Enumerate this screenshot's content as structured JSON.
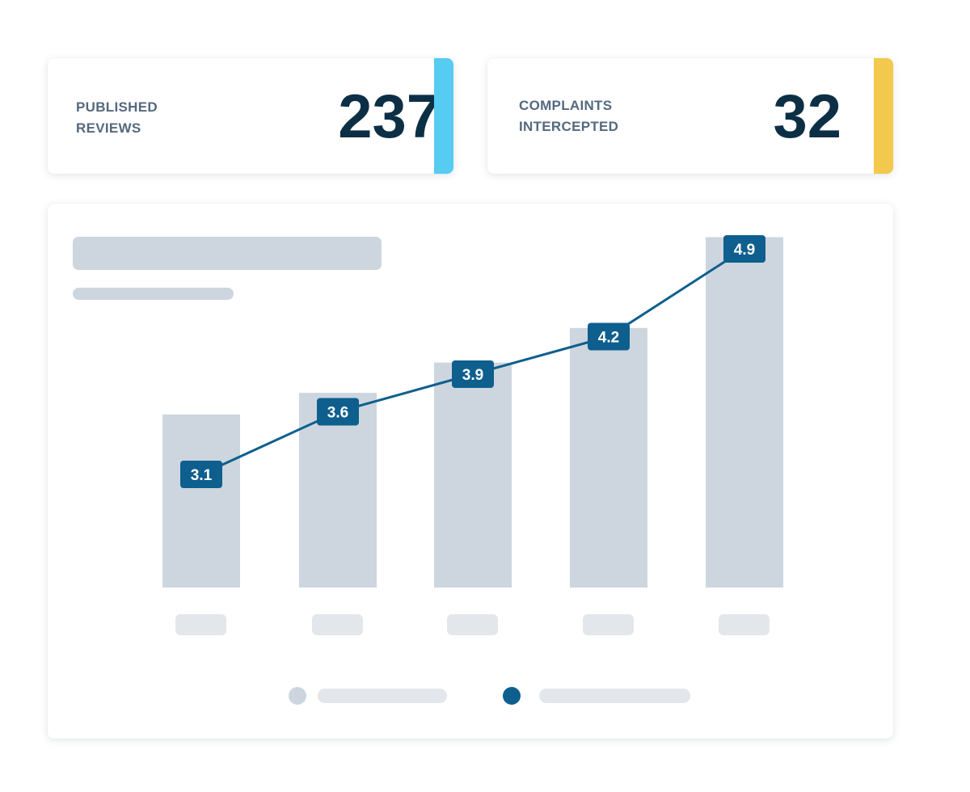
{
  "stats": [
    {
      "label": "PUBLISHED REVIEWS",
      "value": "237",
      "accent": "#56ccf2"
    },
    {
      "label": "COMPLAINTS INTERCEPTED",
      "value": "32",
      "accent": "#f2c94c"
    }
  ],
  "colors": {
    "bar": "#cdd6de",
    "line": "#0e5f8e",
    "label_bg": "#0e5f8e",
    "label_text": "#ffffff",
    "placeholder": "#cdd6de",
    "tick_placeholder": "#e3e7eb",
    "dark_text": "#0d2f46",
    "muted_text": "#54697e"
  },
  "chart_data": {
    "type": "bar",
    "title": "",
    "xlabel": "",
    "ylabel": "",
    "categories": [
      "",
      "",
      "",
      "",
      ""
    ],
    "series": [
      {
        "type": "bar",
        "values": [
          4.0,
          4.5,
          5.2,
          6.0,
          8.1
        ]
      },
      {
        "type": "line",
        "values": [
          3.1,
          3.6,
          3.9,
          4.2,
          4.9
        ]
      }
    ],
    "data_labels": [
      "3.1",
      "3.6",
      "3.9",
      "4.2",
      "4.9"
    ],
    "ylim": [
      0,
      8.5
    ],
    "grid": false,
    "legend": "bottom-center"
  }
}
